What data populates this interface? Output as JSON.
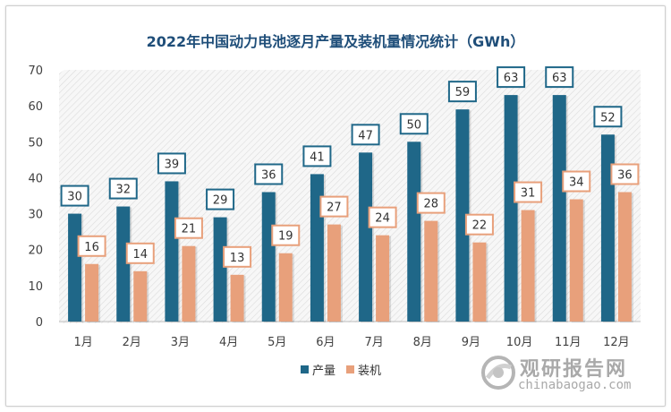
{
  "title": "2022年中国动力电池逐月产量及装机量情况统计（GWh）",
  "watermark": {
    "name": "观研报告网",
    "url": "chinabaogao.com"
  },
  "colors": {
    "production": "#1f6788",
    "installed": "#e8a07b"
  },
  "chart_data": {
    "type": "bar",
    "categories": [
      "1月",
      "2月",
      "3月",
      "4月",
      "5月",
      "6月",
      "7月",
      "8月",
      "9月",
      "10月",
      "11月",
      "12月"
    ],
    "series": [
      {
        "name": "产量",
        "values": [
          30,
          32,
          39,
          29,
          36,
          41,
          47,
          50,
          59,
          63,
          63,
          52
        ]
      },
      {
        "name": "装机",
        "values": [
          16,
          14,
          21,
          13,
          19,
          27,
          24,
          28,
          22,
          31,
          34,
          36
        ]
      }
    ],
    "ylim": [
      0,
      70
    ],
    "yticks": [
      0,
      10,
      20,
      30,
      40,
      50,
      60,
      70
    ],
    "legend_position": "bottom",
    "grid": false
  }
}
